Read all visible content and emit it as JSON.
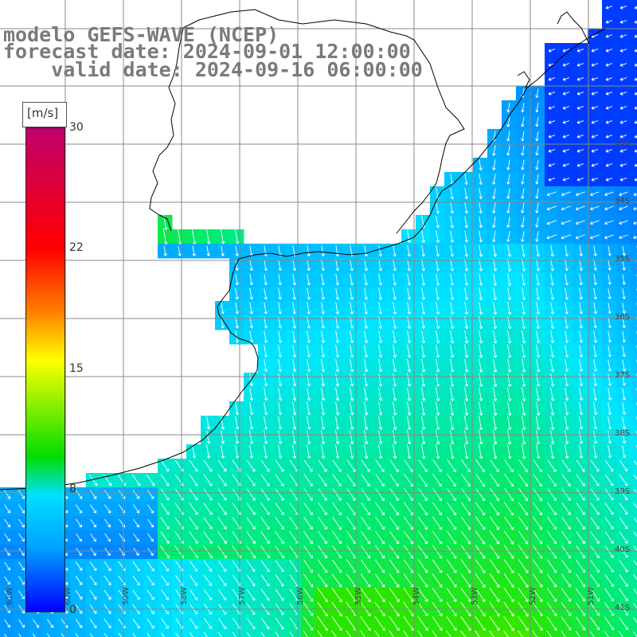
{
  "title": {
    "model": "modelo GEFS-WAVE (NCEP)",
    "forecast": "forecast date: 2024-09-01 12:00:00",
    "valid": "    valid date: 2024-09-16 06:00:00"
  },
  "colorbar": {
    "unit": "[m/s]",
    "labels": [
      "30",
      "22",
      "15",
      "8",
      "0"
    ],
    "colors": [
      "#c0006c",
      "#ff0000",
      "#ff8000",
      "#ffff00",
      "#00dd00",
      "#00e0ff",
      "#00a0ff",
      "#0000ff"
    ]
  },
  "lat_labels": [
    "33S",
    "34S",
    "35S",
    "36S",
    "37S",
    "38S",
    "39S",
    "40S",
    "41S"
  ],
  "lon_labels": [
    "61W",
    "60W",
    "59W",
    "58W",
    "57W",
    "56W",
    "55W",
    "54W",
    "53W",
    "52W",
    "51W"
  ],
  "colors": {
    "land": "#ffffff",
    "coast": "#000000",
    "grid": "#888888",
    "title": "#7a7a7a",
    "arrows": "#ffffff"
  }
}
